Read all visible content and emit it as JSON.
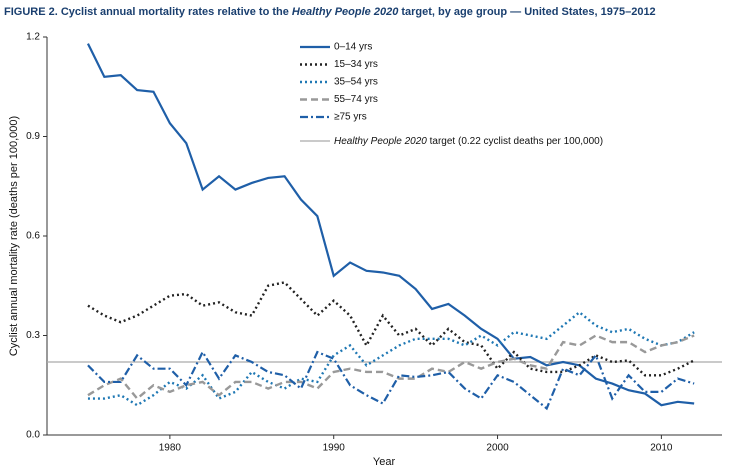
{
  "chart_data": {
    "type": "line",
    "title": [
      "FIGURE 2. Cyclist annual mortality rates relative to the ",
      "Healthy People 2020",
      " target, by age group — United States, 1975–2012"
    ],
    "x_label": "Year",
    "y_label": "Cyclist annual mortality rate (deaths per 100,000)",
    "x": [
      1975,
      1976,
      1977,
      1978,
      1979,
      1980,
      1981,
      1982,
      1983,
      1984,
      1985,
      1986,
      1987,
      1988,
      1989,
      1990,
      1991,
      1992,
      1993,
      1994,
      1995,
      1996,
      1997,
      1998,
      1999,
      2000,
      2001,
      2002,
      2003,
      2004,
      2005,
      2006,
      2007,
      2008,
      2009,
      2010,
      2011,
      2012
    ],
    "xlim": [
      1972.5,
      2013.7
    ],
    "xticks": [
      1980,
      1990,
      2000,
      2010
    ],
    "ylim": [
      0,
      1.2
    ],
    "yticks": [
      {
        "value": 0,
        "label": "0.0"
      },
      0.3,
      0.6,
      0.9,
      1.2
    ],
    "legend_position": "top",
    "series": [
      {
        "name": "0–14 yrs",
        "color": "#1f5fa8",
        "style": "solid",
        "values": [
          1.18,
          1.08,
          1.085,
          1.04,
          1.035,
          0.94,
          0.88,
          0.74,
          0.78,
          0.74,
          0.76,
          0.775,
          0.78,
          0.71,
          0.66,
          0.48,
          0.52,
          0.495,
          0.49,
          0.48,
          0.44,
          0.38,
          0.395,
          0.36,
          0.32,
          0.29,
          0.23,
          0.235,
          0.21,
          0.22,
          0.21,
          0.17,
          0.155,
          0.135,
          0.125,
          0.09,
          0.1,
          0.095
        ]
      },
      {
        "name": "15–34 yrs",
        "color": "#222222",
        "style": "dotted",
        "values": [
          0.39,
          0.36,
          0.34,
          0.36,
          0.39,
          0.42,
          0.425,
          0.39,
          0.4,
          0.37,
          0.36,
          0.45,
          0.46,
          0.41,
          0.36,
          0.405,
          0.36,
          0.27,
          0.36,
          0.3,
          0.32,
          0.27,
          0.32,
          0.28,
          0.27,
          0.2,
          0.25,
          0.2,
          0.19,
          0.19,
          0.21,
          0.24,
          0.22,
          0.225,
          0.18,
          0.18,
          0.2,
          0.225
        ]
      },
      {
        "name": "35–54 yrs",
        "color": "#1f78b4",
        "style": "dotted",
        "values": [
          0.11,
          0.11,
          0.12,
          0.09,
          0.12,
          0.16,
          0.14,
          0.18,
          0.11,
          0.13,
          0.19,
          0.16,
          0.14,
          0.17,
          0.16,
          0.24,
          0.27,
          0.21,
          0.24,
          0.27,
          0.29,
          0.29,
          0.29,
          0.27,
          0.3,
          0.27,
          0.31,
          0.3,
          0.29,
          0.33,
          0.37,
          0.33,
          0.31,
          0.32,
          0.29,
          0.27,
          0.28,
          0.31
        ]
      },
      {
        "name": "55–74 yrs",
        "color": "#999999",
        "style": "dashed",
        "values": [
          0.12,
          0.15,
          0.17,
          0.11,
          0.15,
          0.13,
          0.15,
          0.16,
          0.12,
          0.16,
          0.16,
          0.14,
          0.16,
          0.16,
          0.14,
          0.19,
          0.2,
          0.19,
          0.19,
          0.17,
          0.17,
          0.2,
          0.19,
          0.22,
          0.2,
          0.22,
          0.23,
          0.21,
          0.2,
          0.28,
          0.27,
          0.3,
          0.28,
          0.28,
          0.25,
          0.27,
          0.28,
          0.3
        ]
      },
      {
        "name": "≥75 yrs",
        "color": "#1f5fa8",
        "style": "dashdot",
        "values": [
          0.21,
          0.16,
          0.16,
          0.24,
          0.2,
          0.2,
          0.15,
          0.25,
          0.17,
          0.24,
          0.22,
          0.19,
          0.18,
          0.14,
          0.25,
          0.23,
          0.15,
          0.12,
          0.095,
          0.18,
          0.175,
          0.18,
          0.19,
          0.14,
          0.11,
          0.18,
          0.16,
          0.12,
          0.08,
          0.2,
          0.18,
          0.24,
          0.11,
          0.18,
          0.13,
          0.13,
          0.17,
          0.155
        ]
      }
    ],
    "target": {
      "value": 0.22,
      "color": "#aaaaaa",
      "label": [
        "Healthy People 2020",
        " target (0.22 cyclist deaths per 100,000)"
      ]
    }
  }
}
